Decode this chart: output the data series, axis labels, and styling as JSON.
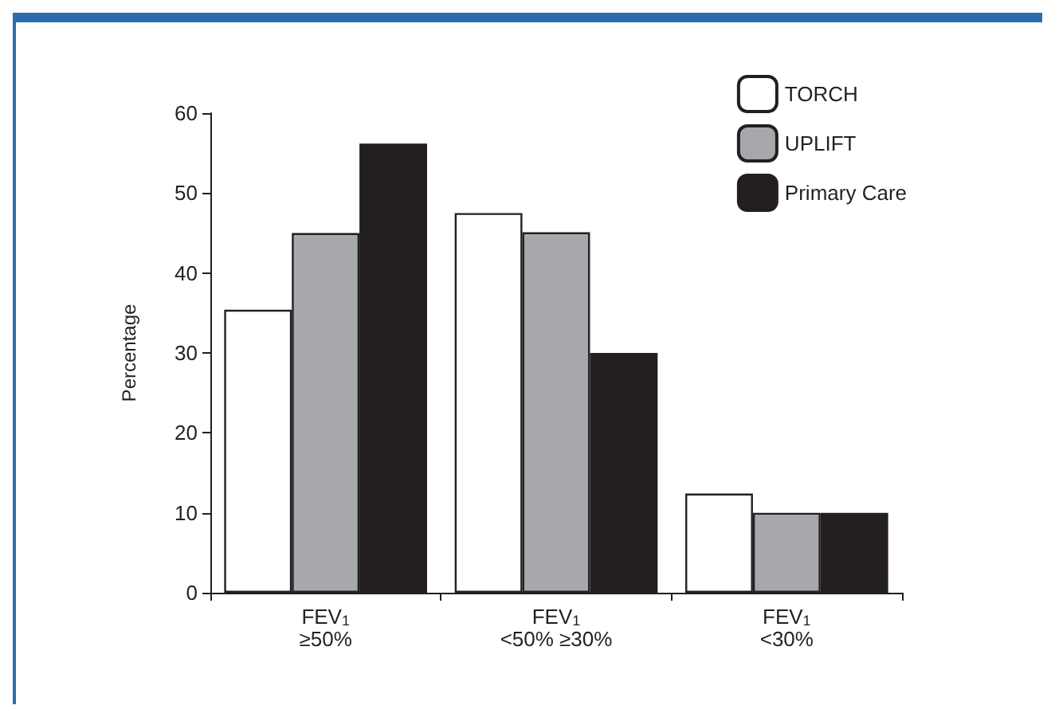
{
  "chart_data": {
    "type": "bar",
    "ylabel": "Percentage",
    "categories": [
      "FEV$_{1}$\n≥50%",
      "FEV$_{1}$\n<50% ≥30%",
      "FEV$_{1}$\n<30%"
    ],
    "series": [
      {
        "name": "TORCH",
        "color": "#ffffff",
        "values": [
          35.4,
          47.5,
          12.4
        ]
      },
      {
        "name": "UPLIFT",
        "color": "#a7a8ab",
        "values": [
          45,
          45.1,
          10
        ]
      },
      {
        "name": "Primary Care",
        "color": "#231f20",
        "values": [
          56.2,
          30,
          10
        ]
      }
    ],
    "ylim": [
      0,
      60
    ],
    "yticks": [
      0,
      10,
      20,
      30,
      40,
      50,
      60
    ],
    "grid": false,
    "legend": "top right"
  }
}
